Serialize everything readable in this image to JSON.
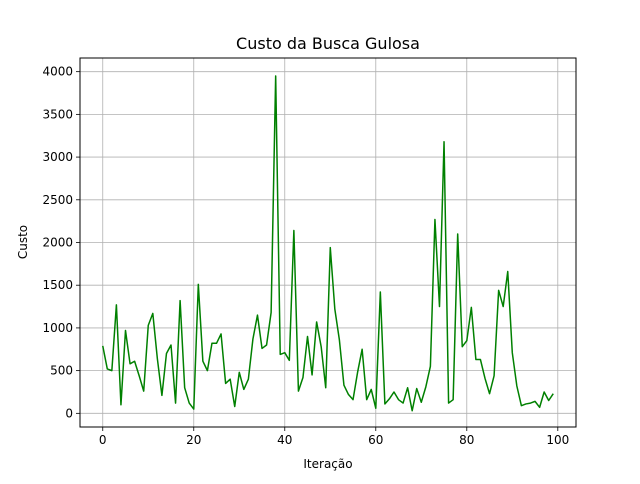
{
  "chart_data": {
    "type": "line",
    "title": "Custo da Busca Gulosa",
    "xlabel": "Iteração",
    "ylabel": "Custo",
    "xlim": [
      -5,
      104
    ],
    "ylim": [
      -160,
      4160
    ],
    "xticks": [
      0,
      20,
      40,
      60,
      80,
      100
    ],
    "yticks": [
      0,
      500,
      1000,
      1500,
      2000,
      2500,
      3000,
      3500,
      4000
    ],
    "grid": true,
    "series": [
      {
        "color": "#008000",
        "x": [
          0,
          1,
          2,
          3,
          4,
          5,
          6,
          7,
          8,
          9,
          10,
          11,
          12,
          13,
          14,
          15,
          16,
          17,
          18,
          19,
          20,
          21,
          22,
          23,
          24,
          25,
          26,
          27,
          28,
          29,
          30,
          31,
          32,
          33,
          34,
          35,
          36,
          37,
          38,
          39,
          40,
          41,
          42,
          43,
          44,
          45,
          46,
          47,
          48,
          49,
          50,
          51,
          52,
          53,
          54,
          55,
          56,
          57,
          58,
          59,
          60,
          61,
          62,
          63,
          64,
          65,
          66,
          67,
          68,
          69,
          70,
          71,
          72,
          73,
          74,
          75,
          76,
          77,
          78,
          79,
          80,
          81,
          82,
          83,
          84,
          85,
          86,
          87,
          88,
          89,
          90,
          91,
          92,
          93,
          94,
          95,
          96,
          97,
          98,
          99
        ],
        "values": [
          790,
          520,
          500,
          1270,
          100,
          970,
          580,
          610,
          440,
          260,
          1030,
          1170,
          640,
          210,
          700,
          800,
          120,
          1320,
          300,
          120,
          50,
          1510,
          610,
          500,
          820,
          820,
          930,
          350,
          400,
          80,
          480,
          280,
          400,
          870,
          1150,
          760,
          800,
          1180,
          3950,
          690,
          710,
          620,
          2140,
          260,
          420,
          900,
          450,
          1070,
          780,
          300,
          1940,
          1220,
          860,
          330,
          220,
          160,
          480,
          750,
          160,
          280,
          60,
          1420,
          110,
          170,
          250,
          160,
          120,
          300,
          30,
          290,
          130,
          310,
          550,
          2270,
          1250,
          3180,
          120,
          160,
          2100,
          780,
          850,
          1240,
          630,
          630,
          410,
          230,
          440,
          1440,
          1250,
          1660,
          710,
          320,
          90,
          110,
          120,
          140,
          70,
          250,
          150,
          230
        ]
      }
    ]
  }
}
